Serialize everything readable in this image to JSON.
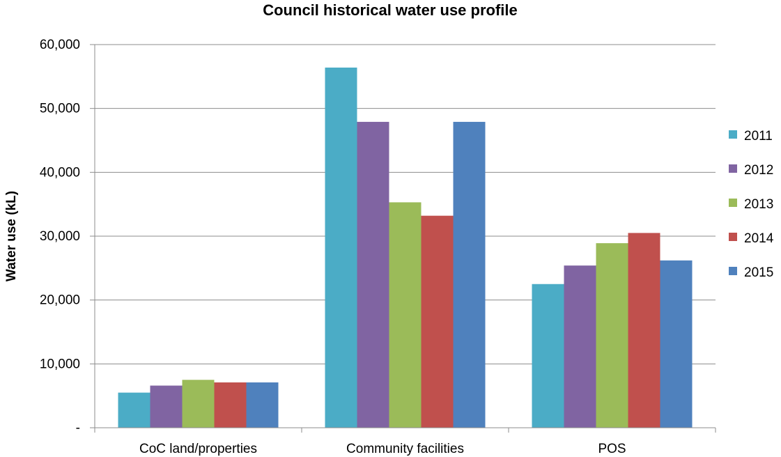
{
  "chart_data": {
    "type": "bar",
    "title": "Council historical water use profile",
    "xlabel": "",
    "ylabel": "Water use (kL)",
    "ylim": [
      0,
      60000
    ],
    "yticks": [
      0,
      10000,
      20000,
      30000,
      40000,
      50000,
      60000
    ],
    "ytick_labels": [
      "-",
      "10,000",
      "20,000",
      "30,000",
      "40,000",
      "50,000",
      "60,000"
    ],
    "grid": true,
    "legend_position": "right",
    "categories": [
      "CoC land/properties",
      "Community facilities",
      "POS"
    ],
    "series": [
      {
        "name": "2011",
        "color": "#4bacc6",
        "values": [
          5500,
          56400,
          22500
        ]
      },
      {
        "name": "2012",
        "color": "#8064a2",
        "values": [
          6600,
          47900,
          25400
        ]
      },
      {
        "name": "2013",
        "color": "#9bbb59",
        "values": [
          7500,
          35300,
          28900
        ]
      },
      {
        "name": "2014",
        "color": "#c0504d",
        "values": [
          7100,
          33200,
          30500
        ]
      },
      {
        "name": "2015",
        "color": "#4f81bd",
        "values": [
          7100,
          47900,
          26200
        ]
      }
    ]
  }
}
